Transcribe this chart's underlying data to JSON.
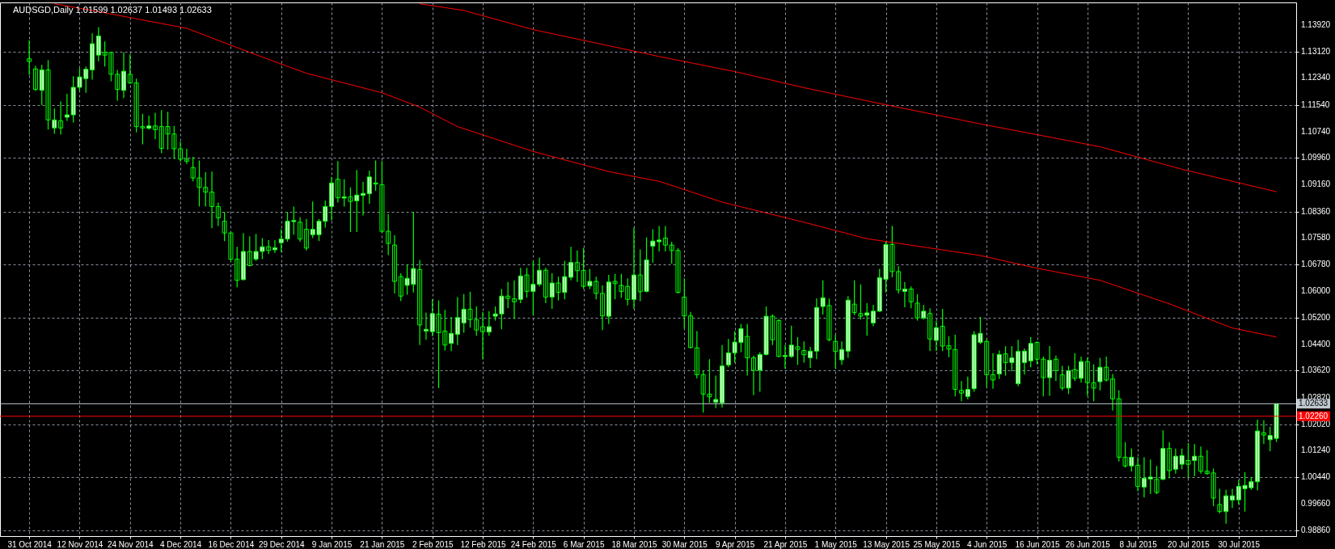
{
  "chart_data": {
    "type": "candlestick",
    "title": "AUDSGD,Daily  1.01599 1.02637 1.01493 1.02633",
    "color": "#00ff00",
    "grid": true,
    "categories": [
      "31 Oct 2014",
      null,
      null,
      null,
      null,
      null,
      null,
      null,
      "12 Nov 2014",
      null,
      null,
      null,
      null,
      null,
      null,
      null,
      "24 Nov 2014",
      null,
      null,
      null,
      null,
      null,
      null,
      null,
      "4 Dec 2014",
      null,
      null,
      null,
      null,
      null,
      null,
      null,
      "16 Dec 2014",
      null,
      null,
      null,
      null,
      null,
      null,
      null,
      "29 Dec 2014",
      null,
      null,
      null,
      null,
      null,
      null,
      null,
      "9 Jan 2015",
      null,
      null,
      null,
      null,
      null,
      null,
      null,
      "21 Jan 2015",
      null,
      null,
      null,
      null,
      null,
      null,
      null,
      "2 Feb 2015",
      null,
      null,
      null,
      null,
      null,
      null,
      null,
      "12 Feb 2015",
      null,
      null,
      null,
      null,
      null,
      null,
      null,
      "24 Feb 2015",
      null,
      null,
      null,
      null,
      null,
      null,
      null,
      "6 Mar 2015",
      null,
      null,
      null,
      null,
      null,
      null,
      null,
      "18 Mar 2015",
      null,
      null,
      null,
      null,
      null,
      null,
      null,
      "30 Mar 2015",
      null,
      null,
      null,
      null,
      null,
      null,
      null,
      "9 Apr 2015",
      null,
      null,
      null,
      null,
      null,
      null,
      null,
      "21 Apr 2015",
      null,
      null,
      null,
      null,
      null,
      null,
      null,
      "1 May 2015",
      null,
      null,
      null,
      null,
      null,
      null,
      null,
      "13 May 2015",
      null,
      null,
      null,
      null,
      null,
      null,
      null,
      "25 May 2015",
      null,
      null,
      null,
      null,
      null,
      null,
      null,
      "4 Jun 2015",
      null,
      null,
      null,
      null,
      null,
      null,
      null,
      "16 Jun 2015",
      null,
      null,
      null,
      null,
      null,
      null,
      null,
      "26 Jun 2015",
      null,
      null,
      null,
      null,
      null,
      null,
      null,
      "8 Jul 2015",
      null,
      null,
      null,
      null,
      null,
      null,
      null,
      "20 Jul 2015",
      null,
      null,
      null,
      null,
      null,
      null,
      null,
      "30 Jul 2015",
      null,
      null,
      null,
      null,
      null,
      null
    ],
    "ohlc": [
      [
        1.1291,
        1.1346,
        1.1242,
        1.1283
      ],
      [
        1.1261,
        1.127,
        1.1195,
        1.12
      ],
      [
        1.1197,
        1.1273,
        1.1153,
        1.1258
      ],
      [
        1.1258,
        1.1287,
        1.108,
        1.1109
      ],
      [
        1.1085,
        1.1143,
        1.1068,
        1.1109
      ],
      [
        1.1106,
        1.1164,
        1.1065,
        1.1085
      ],
      [
        1.1117,
        1.1187,
        1.1106,
        1.1124
      ],
      [
        1.1124,
        1.1239,
        1.1101,
        1.1206
      ],
      [
        1.1206,
        1.1263,
        1.1195,
        1.1237
      ],
      [
        1.1232,
        1.1268,
        1.119,
        1.126
      ],
      [
        1.1258,
        1.1367,
        1.1229,
        1.1336
      ],
      [
        1.1302,
        1.1385,
        1.1284,
        1.1359
      ],
      [
        1.131,
        1.1343,
        1.1268,
        1.1302
      ],
      [
        1.131,
        1.1312,
        1.1224,
        1.1245
      ],
      [
        1.1245,
        1.1258,
        1.1166,
        1.12
      ],
      [
        1.1197,
        1.131,
        1.1174,
        1.1254
      ],
      [
        1.1245,
        1.1305,
        1.1216,
        1.1219
      ],
      [
        1.1219,
        1.1232,
        1.1072,
        1.1089
      ],
      [
        1.1089,
        1.1127,
        1.1036,
        1.1085
      ],
      [
        1.1084,
        1.1122,
        1.108,
        1.1091
      ],
      [
        1.1091,
        1.113,
        1.1051,
        1.108
      ],
      [
        1.1089,
        1.1138,
        1.101,
        1.1024
      ],
      [
        1.1089,
        1.1133,
        1.102,
        1.1067
      ],
      [
        1.1067,
        1.1091,
        1.0992,
        1.1023
      ],
      [
        1.1023,
        1.1044,
        1.0984,
        1.0992
      ],
      [
        1.0992,
        1.1023,
        1.0978,
        1.0986
      ],
      [
        1.0967,
        1.0999,
        1.0926,
        1.0936
      ],
      [
        1.0936,
        1.0988,
        1.0851,
        1.0908
      ],
      [
        1.0908,
        1.0953,
        1.0851,
        1.0894
      ],
      [
        1.0894,
        1.0955,
        1.0786,
        1.0851
      ],
      [
        1.0851,
        1.0863,
        1.0793,
        1.0817
      ],
      [
        1.0807,
        1.0835,
        1.0748,
        1.0772
      ],
      [
        1.0772,
        1.0777,
        1.0686,
        1.0694
      ],
      [
        1.0694,
        1.0731,
        1.061,
        1.0631
      ],
      [
        1.0633,
        1.0772,
        1.0631,
        1.0717
      ],
      [
        1.0717,
        1.0762,
        1.0673,
        1.0675
      ],
      [
        1.0694,
        1.0769,
        1.0689,
        1.0717
      ],
      [
        1.0717,
        1.0757,
        1.0694,
        1.0731
      ],
      [
        1.0731,
        1.0751,
        1.071,
        1.072
      ],
      [
        1.0722,
        1.0751,
        1.0713,
        1.0728
      ],
      [
        1.0743,
        1.0783,
        1.0715,
        1.0754
      ],
      [
        1.0754,
        1.0835,
        1.0746,
        1.0807
      ],
      [
        1.0806,
        1.0851,
        1.0767,
        1.0809
      ],
      [
        1.0804,
        1.0819,
        1.0746,
        1.0754
      ],
      [
        1.0783,
        1.0814,
        1.072,
        1.0727
      ],
      [
        1.0767,
        1.0866,
        1.0757,
        1.0783
      ],
      [
        1.0767,
        1.0814,
        1.0748,
        1.0807
      ],
      [
        1.0807,
        1.0869,
        1.0788,
        1.0851
      ],
      [
        1.0851,
        1.0939,
        1.0809,
        1.0921
      ],
      [
        1.0932,
        1.0986,
        1.0863,
        1.0877
      ],
      [
        1.0876,
        1.0932,
        1.0851,
        1.088
      ],
      [
        1.088,
        1.0908,
        1.0775,
        1.0866
      ],
      [
        1.0868,
        1.096,
        1.0775,
        1.0885
      ],
      [
        1.0884,
        1.0924,
        1.0824,
        1.089
      ],
      [
        1.0889,
        1.0958,
        1.0859,
        1.0939
      ],
      [
        1.0918,
        1.0988,
        1.0898,
        1.0921
      ],
      [
        1.0916,
        1.0986,
        1.0772,
        1.0777
      ],
      [
        1.0777,
        1.0828,
        1.0706,
        1.0741
      ],
      [
        1.0736,
        1.0765,
        1.0592,
        1.0628
      ],
      [
        1.0642,
        1.0652,
        1.0569,
        1.0584
      ],
      [
        1.0616,
        1.0678,
        1.0588,
        1.0637
      ],
      [
        1.0619,
        1.0835,
        1.0595,
        1.0666
      ],
      [
        1.0663,
        1.0692,
        1.0438,
        1.0498
      ],
      [
        1.048,
        1.0535,
        1.0454,
        1.0485
      ],
      [
        1.0478,
        1.0574,
        1.0464,
        1.0532
      ],
      [
        1.053,
        1.0571,
        1.031,
        1.0475
      ],
      [
        1.048,
        1.0543,
        1.0422,
        1.0438
      ],
      [
        1.0443,
        1.0522,
        1.042,
        1.0473
      ],
      [
        1.047,
        1.0581,
        1.0438,
        1.052
      ],
      [
        1.0504,
        1.059,
        1.0475,
        1.0545
      ],
      [
        1.0545,
        1.0597,
        1.049,
        1.0514
      ],
      [
        1.0514,
        1.0553,
        1.0466,
        1.0483
      ],
      [
        1.0493,
        1.0537,
        1.0396,
        1.0478
      ],
      [
        1.0477,
        1.0539,
        1.0466,
        1.0493
      ],
      [
        1.0524,
        1.0553,
        1.0511,
        1.0531
      ],
      [
        1.0531,
        1.0605,
        1.0485,
        1.0584
      ],
      [
        1.0584,
        1.0626,
        1.0548,
        1.0577
      ],
      [
        1.0576,
        1.0631,
        1.0516,
        1.0567
      ],
      [
        1.0574,
        1.0668,
        1.0563,
        1.0644
      ],
      [
        1.0647,
        1.0668,
        1.0579,
        1.0598
      ],
      [
        1.0598,
        1.0689,
        1.0527,
        1.0619
      ],
      [
        1.0619,
        1.0699,
        1.0613,
        1.0661
      ],
      [
        1.0661,
        1.0668,
        1.0563,
        1.0581
      ],
      [
        1.0581,
        1.0652,
        1.0546,
        1.0623
      ],
      [
        1.0623,
        1.0642,
        1.0571,
        1.0595
      ],
      [
        1.0595,
        1.0689,
        1.0574,
        1.0642
      ],
      [
        1.064,
        1.0731,
        1.0631,
        1.0684
      ],
      [
        1.0684,
        1.072,
        1.0626,
        1.066
      ],
      [
        1.066,
        1.0728,
        1.0605,
        1.0613
      ],
      [
        1.0614,
        1.0665,
        1.0605,
        1.0628
      ],
      [
        1.0628,
        1.0642,
        1.0574,
        1.0592
      ],
      [
        1.0592,
        1.0616,
        1.0483,
        1.0525
      ],
      [
        1.0524,
        1.0647,
        1.0501,
        1.0626
      ],
      [
        1.0628,
        1.065,
        1.0574,
        1.0621
      ],
      [
        1.0616,
        1.065,
        1.0579,
        1.0598
      ],
      [
        1.0613,
        1.0637,
        1.0556,
        1.0574
      ],
      [
        1.0574,
        1.0788,
        1.0546,
        1.0647
      ],
      [
        1.0647,
        1.0723,
        1.0569,
        1.0597
      ],
      [
        1.0598,
        1.0759,
        1.0595,
        1.0692
      ],
      [
        1.0733,
        1.0783,
        1.0684,
        1.0748
      ],
      [
        1.0746,
        1.0793,
        1.0717,
        1.0751
      ],
      [
        1.0757,
        1.0793,
        1.0717,
        1.0736
      ],
      [
        1.0736,
        1.0746,
        1.0681,
        1.072
      ],
      [
        1.072,
        1.0727,
        1.0592,
        1.0595
      ],
      [
        1.0581,
        1.0637,
        1.0487,
        1.0525
      ],
      [
        1.0525,
        1.0537,
        1.0428,
        1.0431
      ],
      [
        1.043,
        1.048,
        1.0339,
        1.035
      ],
      [
        1.035,
        1.0362,
        1.0237,
        1.0292
      ],
      [
        1.0292,
        1.0396,
        1.0266,
        1.0284
      ],
      [
        1.0268,
        1.0347,
        1.025,
        1.0276
      ],
      [
        1.0266,
        1.0438,
        1.0252,
        1.0376
      ],
      [
        1.0379,
        1.0456,
        1.0372,
        1.0415
      ],
      [
        1.0415,
        1.048,
        1.0386,
        1.0447
      ],
      [
        1.0446,
        1.0501,
        1.0417,
        1.0487
      ],
      [
        1.0464,
        1.0501,
        1.0347,
        1.04
      ],
      [
        1.04,
        1.0407,
        1.0289,
        1.0363
      ],
      [
        1.0363,
        1.0417,
        1.0299,
        1.041
      ],
      [
        1.041,
        1.0553,
        1.0407,
        1.0524
      ],
      [
        1.0524,
        1.0529,
        1.0438,
        1.0454
      ],
      [
        1.0511,
        1.0516,
        1.0402,
        1.0404
      ],
      [
        1.0404,
        1.0438,
        1.0368,
        1.0407
      ],
      [
        1.0404,
        1.0496,
        1.04,
        1.0438
      ],
      [
        1.0433,
        1.0462,
        1.0379,
        1.0425
      ],
      [
        1.0422,
        1.0449,
        1.0386,
        1.0409
      ],
      [
        1.04,
        1.0433,
        1.037,
        1.042
      ],
      [
        1.042,
        1.0577,
        1.0396,
        1.055
      ],
      [
        1.0553,
        1.0631,
        1.0529,
        1.0579
      ],
      [
        1.0556,
        1.0577,
        1.0449,
        1.0454
      ],
      [
        1.0449,
        1.0469,
        1.0368,
        1.0419
      ],
      [
        1.0394,
        1.0449,
        1.0379,
        1.0425
      ],
      [
        1.042,
        1.0584,
        1.04,
        1.0572
      ],
      [
        1.056,
        1.0631,
        1.0527,
        1.0535
      ],
      [
        1.0532,
        1.0619,
        1.0514,
        1.0524
      ],
      [
        1.0527,
        1.0563,
        1.0466,
        1.0534
      ],
      [
        1.0504,
        1.0558,
        1.0494,
        1.0539
      ],
      [
        1.0539,
        1.0665,
        1.0537,
        1.0639
      ],
      [
        1.0634,
        1.0746,
        1.0595,
        1.0738
      ],
      [
        1.0738,
        1.0793,
        1.064,
        1.0657
      ],
      [
        1.0657,
        1.0673,
        1.0592,
        1.0602
      ],
      [
        1.0598,
        1.0626,
        1.0551,
        1.0605
      ],
      [
        1.0605,
        1.0613,
        1.0548,
        1.0567
      ],
      [
        1.0563,
        1.059,
        1.0511,
        1.0519
      ],
      [
        1.0519,
        1.0558,
        1.0514,
        1.0539
      ],
      [
        1.0532,
        1.0548,
        1.042,
        1.0456
      ],
      [
        1.0452,
        1.0511,
        1.042,
        1.049
      ],
      [
        1.0494,
        1.0546,
        1.042,
        1.0435
      ],
      [
        1.0436,
        1.0464,
        1.0402,
        1.0426
      ],
      [
        1.0425,
        1.0469,
        1.0285,
        1.0306
      ],
      [
        1.0303,
        1.0331,
        1.0271,
        1.0295
      ],
      [
        1.0285,
        1.0344,
        1.0276,
        1.0306
      ],
      [
        1.0308,
        1.048,
        1.0299,
        1.0469
      ],
      [
        1.0446,
        1.0522,
        1.0441,
        1.0473
      ],
      [
        1.0449,
        1.0456,
        1.0313,
        1.035
      ],
      [
        1.035,
        1.0414,
        1.0308,
        1.0334
      ],
      [
        1.0352,
        1.0422,
        1.0337,
        1.041
      ],
      [
        1.0412,
        1.0435,
        1.0347,
        1.0386
      ],
      [
        1.0386,
        1.0435,
        1.036,
        1.04
      ],
      [
        1.0323,
        1.0454,
        1.0316,
        1.0419
      ],
      [
        1.0386,
        1.0428,
        1.035,
        1.042
      ],
      [
        1.0391,
        1.0462,
        1.0372,
        1.0443
      ],
      [
        1.0446,
        1.0449,
        1.0381,
        1.0396
      ],
      [
        1.0396,
        1.0404,
        1.0285,
        1.0341
      ],
      [
        1.0341,
        1.0435,
        1.0287,
        1.0393
      ],
      [
        1.0396,
        1.0407,
        1.0331,
        1.0362
      ],
      [
        1.035,
        1.0376,
        1.0303,
        1.031
      ],
      [
        1.031,
        1.0376,
        1.0292,
        1.0362
      ],
      [
        1.0365,
        1.0414,
        1.0331,
        1.0339
      ],
      [
        1.0339,
        1.0404,
        1.0326,
        1.0389
      ],
      [
        1.0389,
        1.04,
        1.0287,
        1.0326
      ],
      [
        1.0326,
        1.0381,
        1.0271,
        1.031
      ],
      [
        1.0329,
        1.04,
        1.0303,
        1.0372
      ],
      [
        1.0372,
        1.0404,
        1.0329,
        1.0334
      ],
      [
        1.0337,
        1.0352,
        1.0243,
        1.0278
      ],
      [
        1.0278,
        1.0303,
        1.0091,
        1.0104
      ],
      [
        1.0104,
        1.0149,
        1.0073,
        1.0078
      ],
      [
        1.0078,
        1.013,
        1.0062,
        1.0104
      ],
      [
        1.008,
        1.0104,
        1.0003,
        1.0017
      ],
      [
        1.0015,
        1.0104,
        0.9984,
        1.0041
      ],
      [
        1.0039,
        1.0097,
        0.9994,
        1.0045
      ],
      [
        1.0038,
        1.0078,
        0.9994,
        0.9999
      ],
      [
        1.0038,
        1.0184,
        1.0036,
        1.013
      ],
      [
        1.013,
        1.0149,
        1.0041,
        1.0064
      ],
      [
        1.0068,
        1.013,
        1.0055,
        1.0107
      ],
      [
        1.0083,
        1.013,
        1.0068,
        1.0109
      ],
      [
        1.0094,
        1.0146,
        1.0041,
        1.0083
      ],
      [
        1.0094,
        1.0143,
        1.0047,
        1.0107
      ],
      [
        1.0107,
        1.0136,
        1.0055,
        1.0062
      ],
      [
        1.0062,
        1.0125,
        1.0052,
        1.0055
      ],
      [
        1.0057,
        1.007,
        0.9958,
        0.9982
      ],
      [
        0.9963,
        1.001,
        0.9937,
        0.9942
      ],
      [
        0.9942,
        1.0007,
        0.9906,
        0.9989
      ],
      [
        0.9976,
        1.001,
        0.9953,
        0.9989
      ],
      [
        0.9977,
        1.0036,
        0.9963,
        1.0017
      ],
      [
        1.001,
        1.0059,
        0.9942,
        1.002
      ],
      [
        1.0013,
        1.0045,
        1.0007,
        1.0031
      ],
      [
        1.0031,
        1.0216,
        1.0005,
        1.0182
      ],
      [
        1.0177,
        1.0214,
        1.0143,
        1.017
      ],
      [
        1.0156,
        1.0195,
        1.0122,
        1.0169
      ],
      [
        1.01599,
        1.02637,
        1.01493,
        1.02633
      ]
    ],
    "series": [
      {
        "type": "line",
        "color": "#ff0000",
        "values": [
          null,
          null,
          null,
          null,
          1.1455,
          null,
          null,
          null,
          null,
          null,
          1.1435,
          null,
          null,
          null,
          null,
          null,
          null,
          null,
          null,
          null,
          null,
          null,
          null,
          null,
          null,
          1.1382,
          null,
          null,
          null,
          null,
          null,
          null,
          null,
          null,
          null,
          1.131,
          null,
          null,
          null,
          null,
          null,
          null,
          null,
          null,
          1.1248,
          null,
          null,
          null,
          null,
          null,
          null,
          null,
          null,
          null,
          null,
          null,
          1.119,
          null,
          null,
          null,
          null,
          null,
          1.1147,
          null,
          null,
          null,
          null,
          null,
          1.1089,
          null,
          null,
          null,
          null,
          null,
          null,
          null,
          null,
          null,
          null,
          null,
          1.1015,
          null,
          null,
          null,
          null,
          null,
          null,
          null,
          null,
          null,
          null,
          null,
          1.0955,
          null,
          null,
          null,
          null,
          null,
          null,
          null,
          1.0926,
          null,
          null,
          null,
          null,
          null,
          null,
          null,
          null,
          null,
          1.0864,
          null,
          null,
          null,
          null,
          null,
          null,
          null,
          null,
          null,
          null,
          null,
          null,
          1.0804,
          null,
          null,
          null,
          null,
          null,
          null,
          null,
          null,
          null,
          1.0755,
          null,
          null,
          null,
          null,
          null,
          null,
          null,
          null,
          null,
          null,
          null,
          null,
          null,
          null,
          null,
          null,
          null,
          1.0705,
          null,
          null,
          null,
          null,
          null,
          null,
          null,
          null,
          1.0667,
          null,
          null,
          null,
          null,
          null,
          null,
          null,
          null,
          null,
          1.0631,
          null,
          null,
          null,
          null,
          null,
          null,
          null,
          null,
          null,
          null,
          1.0561,
          null,
          null,
          null,
          null,
          null,
          null,
          null,
          null,
          null,
          1.0489,
          null,
          null,
          null,
          null,
          null,
          null,
          1.0462
        ]
      },
      {
        "type": "line",
        "color": "#ff0000",
        "values": [
          null,
          null,
          null,
          null,
          null,
          null,
          null,
          null,
          null,
          null,
          null,
          null,
          null,
          null,
          null,
          null,
          null,
          null,
          null,
          null,
          null,
          null,
          null,
          null,
          null,
          null,
          null,
          null,
          null,
          null,
          null,
          null,
          null,
          null,
          null,
          null,
          null,
          null,
          null,
          null,
          null,
          null,
          null,
          null,
          null,
          null,
          null,
          null,
          null,
          null,
          null,
          null,
          null,
          null,
          null,
          null,
          null,
          null,
          null,
          null,
          null,
          null,
          1.1455,
          null,
          null,
          null,
          null,
          null,
          null,
          1.1435,
          null,
          null,
          null,
          null,
          null,
          null,
          null,
          null,
          null,
          null,
          1.1378,
          null,
          null,
          null,
          null,
          null,
          null,
          null,
          null,
          null,
          null,
          null,
          1.133,
          null,
          null,
          null,
          null,
          null,
          null,
          null,
          1.1298,
          null,
          null,
          null,
          null,
          null,
          null,
          null,
          null,
          null,
          null,
          null,
          1.1253,
          null,
          null,
          null,
          null,
          null,
          null,
          null,
          null,
          null,
          null,
          1.1205,
          null,
          null,
          null,
          null,
          null,
          null,
          null,
          null,
          null,
          null,
          null,
          null,
          1.1154,
          null,
          null,
          null,
          null,
          null,
          null,
          null,
          null,
          null,
          null,
          null,
          null,
          null,
          null,
          1.1097,
          null,
          null,
          null,
          null,
          null,
          null,
          null,
          null,
          1.1065,
          null,
          null,
          null,
          null,
          null,
          null,
          null,
          null,
          null,
          1.1029,
          null,
          null,
          null,
          null,
          null,
          null,
          null,
          null,
          null,
          null,
          null,
          null,
          1.0962,
          null,
          null,
          null,
          null,
          null,
          null,
          null,
          null,
          null,
          null,
          null,
          null,
          null,
          null,
          1.0895
        ]
      }
    ],
    "ylim": [
      0.9869,
      1.1459
    ],
    "yticks": [
      {
        "value": 0.9886,
        "label": "0.98860"
      },
      {
        "value": 0.9966,
        "label": "0.99660"
      },
      {
        "value": 1.0044,
        "label": "1.00440"
      },
      {
        "value": 1.0124,
        "label": "1.01240"
      },
      {
        "value": 1.0202,
        "label": "1.02020"
      },
      {
        "value": 1.0282,
        "label": "1.02820"
      },
      {
        "value": 1.0362,
        "label": "1.03620"
      },
      {
        "value": 1.044,
        "label": "1.04400"
      },
      {
        "value": 1.052,
        "label": "1.05200"
      },
      {
        "value": 1.06,
        "label": "1.06000"
      },
      {
        "value": 1.0678,
        "label": "1.06780"
      },
      {
        "value": 1.0758,
        "label": "1.07580"
      },
      {
        "value": 1.0836,
        "label": "1.08360"
      },
      {
        "value": 1.0916,
        "label": "1.09160"
      },
      {
        "value": 1.0996,
        "label": "1.09960"
      },
      {
        "value": 1.1074,
        "label": "1.10740"
      },
      {
        "value": 1.1154,
        "label": "1.11540"
      },
      {
        "value": 1.1234,
        "label": "1.12340"
      },
      {
        "value": 1.1312,
        "label": "1.13120"
      },
      {
        "value": 1.1392,
        "label": "1.13920"
      }
    ],
    "ref_lines": [
      {
        "axis": "y",
        "value": 1.02633,
        "label": "1.02633",
        "color": "#c0c8d0"
      },
      {
        "axis": "y",
        "value": 1.0226,
        "label": "1.02260",
        "color": "#ff0000"
      }
    ]
  }
}
